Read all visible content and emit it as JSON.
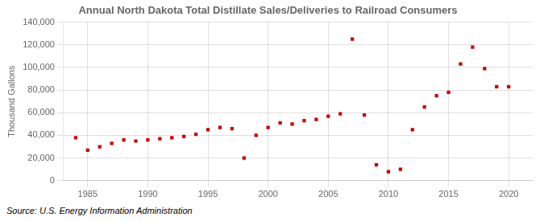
{
  "chart_data": {
    "type": "scatter",
    "title": "Annual North Dakota Total Distillate Sales/Deliveries to Railroad Consumers",
    "ylabel": "Thousand Gallons",
    "annotations": [
      "Source: U.S. Energy Information Administration"
    ],
    "x": [
      1984,
      1985,
      1986,
      1987,
      1988,
      1989,
      1990,
      1991,
      1992,
      1993,
      1994,
      1995,
      1996,
      1997,
      1998,
      1999,
      2000,
      2001,
      2002,
      2003,
      2004,
      2005,
      2006,
      2007,
      2008,
      2009,
      2010,
      2011,
      2012,
      2013,
      2014,
      2015,
      2016,
      2017,
      2018,
      2019,
      2020
    ],
    "values": [
      38000,
      27000,
      30000,
      33000,
      36000,
      35000,
      36000,
      37000,
      38000,
      39000,
      41000,
      45000,
      47000,
      46000,
      20000,
      40000,
      47000,
      51000,
      50000,
      53000,
      54000,
      57000,
      59000,
      125000,
      58000,
      14000,
      8000,
      10000,
      45000,
      65000,
      75000,
      78000,
      103000,
      118000,
      99000,
      83000,
      83000
    ],
    "color": "#cc0000",
    "marker": "square",
    "xlim": [
      1983,
      2022
    ],
    "xticks": [
      1985,
      1990,
      1995,
      2000,
      2005,
      2010,
      2015,
      2020
    ],
    "ylim": [
      0,
      140000
    ],
    "yticks": [
      0,
      {
        "value": 20000,
        "label": "20,000"
      },
      {
        "value": 40000,
        "label": "40,000"
      },
      {
        "value": 60000,
        "label": "60,000"
      },
      {
        "value": 80000,
        "label": "80,000"
      },
      {
        "value": 100000,
        "label": "100,000"
      },
      {
        "value": 120000,
        "label": "120,000"
      },
      {
        "value": 140000,
        "label": "140,000"
      }
    ],
    "grid": true
  }
}
